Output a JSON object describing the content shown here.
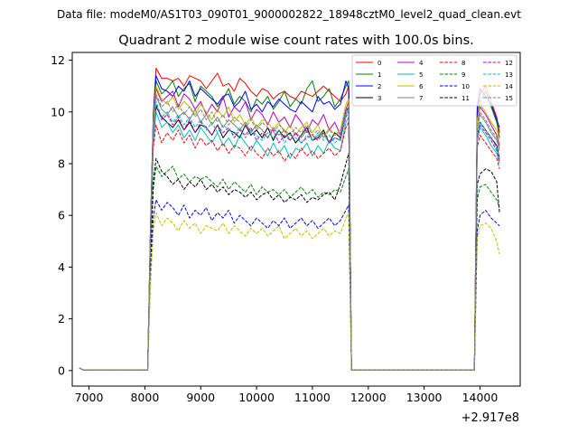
{
  "chart_data": {
    "type": "line",
    "suptitle": "Data file: modeM0/AS1T03_090T01_9000002822_18948cztM0_level2_quad_clean.evt",
    "title": "Quadrant 2 module wise count rates with 100.0s bins.",
    "xlabel": "",
    "ylabel": "",
    "x_offset_label": "+2.917e8",
    "xlim": [
      6700,
      14720
    ],
    "ylim": [
      -0.6,
      12.3
    ],
    "x_ticks": [
      7000,
      8000,
      9000,
      10000,
      11000,
      12000,
      13000,
      14000
    ],
    "y_ticks": [
      0,
      2,
      4,
      6,
      8,
      10,
      12
    ],
    "grid": false,
    "legend_position": "top-right",
    "x": [
      6830,
      6900,
      8050,
      8100,
      8150,
      8200,
      8300,
      8400,
      8500,
      8600,
      8700,
      8800,
      8900,
      9000,
      9100,
      9200,
      9300,
      9400,
      9500,
      9600,
      9700,
      9800,
      9900,
      10000,
      10100,
      10200,
      10300,
      10400,
      10500,
      10600,
      10700,
      10800,
      10900,
      11000,
      11100,
      11200,
      11300,
      11400,
      11500,
      11600,
      11650,
      11700,
      11800,
      11900,
      13800,
      13900,
      13950,
      14000,
      14100,
      14200,
      14300,
      14350
    ],
    "series": [
      {
        "name": "0",
        "color": "#ff0000",
        "dash": "solid",
        "values": [
          0.1,
          0.02,
          0.02,
          5.6,
          9.9,
          11.7,
          11.3,
          11.3,
          11.2,
          11.3,
          11.0,
          11.4,
          11.3,
          11.2,
          10.9,
          11.2,
          11.5,
          11.0,
          11.1,
          10.8,
          11.3,
          11.1,
          10.8,
          10.6,
          10.9,
          10.8,
          10.5,
          10.7,
          10.8,
          10.6,
          10.5,
          10.8,
          10.7,
          10.6,
          10.8,
          11.0,
          10.8,
          10.6,
          10.4,
          10.7,
          11.0,
          0.02,
          0.02,
          0.02,
          0.02,
          0.02,
          10.0,
          10.7,
          11.0,
          10.4,
          9.8,
          9.2
        ]
      },
      {
        "name": "1",
        "color": "#008000",
        "dash": "solid",
        "values": [
          0.1,
          0.02,
          0.02,
          5.4,
          9.5,
          11.2,
          10.7,
          10.9,
          11.2,
          10.6,
          10.9,
          11.1,
          10.4,
          11.0,
          10.8,
          10.6,
          10.2,
          10.5,
          10.9,
          10.3,
          10.6,
          10.4,
          10.0,
          10.5,
          10.3,
          10.6,
          10.1,
          10.4,
          10.8,
          10.2,
          10.5,
          10.3,
          10.9,
          11.2,
          10.4,
          10.6,
          10.9,
          10.2,
          10.5,
          11.0,
          11.2,
          0.02,
          0.02,
          0.02,
          0.02,
          0.02,
          9.8,
          10.4,
          10.8,
          10.2,
          9.6,
          9.0
        ]
      },
      {
        "name": "2",
        "color": "#0000ff",
        "dash": "solid",
        "values": [
          0.1,
          0.02,
          0.02,
          5.5,
          9.8,
          11.4,
          10.9,
          10.8,
          10.6,
          11.0,
          10.8,
          11.2,
          10.6,
          10.9,
          10.7,
          10.5,
          10.3,
          10.6,
          10.7,
          10.2,
          10.4,
          10.8,
          10.1,
          10.3,
          10.0,
          10.4,
          10.2,
          10.5,
          10.3,
          10.1,
          10.0,
          10.4,
          10.2,
          10.0,
          10.6,
          10.3,
          10.4,
          10.1,
          10.3,
          11.2,
          10.9,
          0.02,
          0.02,
          0.02,
          0.02,
          0.02,
          10.2,
          10.9,
          10.6,
          10.3,
          9.7,
          9.4
        ]
      },
      {
        "name": "3",
        "color": "#000000",
        "dash": "solid",
        "values": [
          0.1,
          0.02,
          0.02,
          5.0,
          8.9,
          10.2,
          9.8,
          9.6,
          9.4,
          9.7,
          9.3,
          9.6,
          9.2,
          9.5,
          9.4,
          9.1,
          9.5,
          9.0,
          9.3,
          9.2,
          9.0,
          9.5,
          9.1,
          9.3,
          9.0,
          9.4,
          8.9,
          9.3,
          9.0,
          9.2,
          8.8,
          9.1,
          9.4,
          8.9,
          9.0,
          9.3,
          8.8,
          9.2,
          9.0,
          10.0,
          10.2,
          0.02,
          0.02,
          0.02,
          0.02,
          0.02,
          9.0,
          9.6,
          9.3,
          9.0,
          8.7,
          8.2
        ]
      },
      {
        "name": "4",
        "color": "#bf00bf",
        "dash": "solid",
        "values": [
          0.1,
          0.02,
          0.02,
          5.3,
          9.5,
          10.9,
          10.4,
          10.6,
          10.8,
          10.2,
          10.7,
          10.5,
          10.1,
          10.4,
          9.9,
          10.3,
          10.0,
          10.6,
          9.8,
          10.2,
          10.0,
          10.4,
          9.7,
          10.1,
          9.9,
          9.5,
          10.0,
          9.6,
          9.8,
          9.4,
          9.9,
          9.6,
          9.2,
          9.7,
          9.5,
          9.9,
          9.3,
          9.6,
          9.1,
          10.1,
          10.4,
          0.02,
          0.02,
          0.02,
          0.02,
          0.02,
          9.6,
          10.2,
          9.9,
          9.5,
          9.1,
          8.7
        ]
      },
      {
        "name": "5",
        "color": "#00bfbf",
        "dash": "solid",
        "values": [
          0.1,
          0.02,
          0.02,
          4.9,
          8.8,
          10.0,
          9.4,
          9.6,
          9.2,
          9.5,
          9.0,
          9.3,
          8.9,
          9.4,
          9.1,
          8.8,
          9.2,
          8.7,
          9.0,
          8.6,
          9.1,
          8.8,
          8.5,
          8.9,
          8.6,
          8.3,
          8.8,
          8.4,
          8.7,
          8.2,
          8.6,
          8.5,
          8.8,
          8.3,
          8.7,
          8.4,
          8.9,
          8.6,
          8.5,
          9.6,
          9.8,
          0.02,
          0.02,
          0.02,
          0.02,
          0.02,
          8.9,
          9.4,
          9.1,
          8.7,
          8.4,
          8.0
        ]
      },
      {
        "name": "6",
        "color": "#bfbf00",
        "dash": "solid",
        "values": [
          0.1,
          0.02,
          0.02,
          5.3,
          9.6,
          11.0,
          10.5,
          10.3,
          10.6,
          10.1,
          10.4,
          10.2,
          9.9,
          10.3,
          10.0,
          9.7,
          10.1,
          9.8,
          10.2,
          9.6,
          9.9,
          9.5,
          9.8,
          9.4,
          9.7,
          9.6,
          9.3,
          9.6,
          9.2,
          9.5,
          9.1,
          9.4,
          9.6,
          9.2,
          9.5,
          9.0,
          9.4,
          9.1,
          9.3,
          10.3,
          10.5,
          0.02,
          0.02,
          0.02,
          0.02,
          0.02,
          9.7,
          10.3,
          10.0,
          9.6,
          9.3,
          8.9
        ]
      },
      {
        "name": "7",
        "color": "#808080",
        "dash": "solid",
        "values": [
          0.1,
          0.02,
          0.02,
          5.1,
          9.2,
          10.6,
          10.1,
          9.9,
          10.2,
          9.8,
          10.0,
          9.7,
          10.1,
          9.6,
          9.9,
          9.5,
          9.8,
          9.4,
          9.7,
          9.5,
          9.3,
          9.6,
          9.2,
          9.5,
          9.3,
          9.0,
          9.4,
          9.1,
          9.3,
          8.9,
          9.2,
          9.0,
          9.3,
          8.9,
          9.1,
          9.2,
          8.8,
          9.0,
          8.9,
          9.9,
          10.1,
          0.02,
          0.02,
          0.02,
          0.02,
          0.02,
          9.3,
          9.9,
          9.6,
          9.2,
          8.9,
          8.5
        ]
      },
      {
        "name": "8",
        "color": "#ff0000",
        "dash": "dashed",
        "values": [
          0.1,
          0.02,
          0.02,
          4.8,
          8.6,
          9.5,
          8.8,
          9.2,
          8.9,
          9.3,
          8.8,
          9.1,
          8.6,
          9.0,
          8.7,
          8.9,
          8.5,
          8.8,
          8.4,
          8.7,
          8.6,
          8.3,
          8.7,
          8.4,
          8.2,
          8.6,
          8.3,
          8.5,
          8.1,
          8.4,
          8.2,
          8.6,
          8.3,
          8.5,
          8.2,
          8.4,
          8.6,
          8.3,
          8.5,
          9.4,
          9.6,
          0.02,
          0.02,
          0.02,
          0.02,
          0.02,
          8.6,
          9.1,
          8.8,
          8.5,
          8.2,
          7.8
        ]
      },
      {
        "name": "9",
        "color": "#008000",
        "dash": "dashed",
        "values": [
          0.1,
          0.02,
          0.02,
          4.0,
          7.0,
          7.9,
          7.5,
          7.7,
          7.9,
          7.4,
          7.6,
          7.3,
          7.5,
          7.4,
          7.5,
          7.3,
          7.1,
          7.4,
          7.0,
          7.3,
          7.1,
          6.9,
          7.2,
          6.8,
          7.1,
          6.9,
          7.0,
          6.8,
          7.0,
          6.7,
          6.9,
          7.1,
          6.8,
          7.0,
          6.7,
          6.9,
          6.8,
          7.0,
          6.9,
          7.5,
          7.8,
          0.02,
          0.02,
          0.02,
          0.02,
          0.02,
          6.6,
          7.1,
          7.2,
          6.9,
          6.6,
          6.3
        ]
      },
      {
        "name": "10",
        "color": "#0000ff",
        "dash": "dashed",
        "values": [
          0.1,
          0.02,
          0.02,
          3.5,
          5.9,
          6.6,
          6.2,
          6.5,
          6.3,
          6.0,
          6.4,
          5.9,
          6.2,
          6.0,
          6.3,
          5.8,
          6.1,
          5.9,
          6.2,
          5.7,
          6.0,
          5.8,
          5.6,
          5.9,
          5.7,
          5.5,
          5.8,
          5.6,
          5.9,
          5.5,
          5.7,
          5.9,
          5.6,
          5.8,
          5.5,
          5.7,
          5.9,
          5.6,
          5.8,
          6.2,
          6.4,
          0.02,
          0.02,
          0.02,
          0.02,
          0.02,
          5.4,
          6.0,
          6.2,
          5.9,
          5.7,
          5.6
        ]
      },
      {
        "name": "11",
        "color": "#000000",
        "dash": "dashed",
        "values": [
          0.1,
          0.02,
          0.02,
          4.2,
          7.3,
          8.2,
          7.7,
          7.5,
          7.2,
          7.4,
          7.0,
          7.3,
          7.1,
          7.4,
          7.0,
          7.2,
          6.9,
          7.1,
          6.8,
          7.0,
          6.9,
          6.7,
          6.9,
          6.6,
          6.8,
          6.9,
          6.6,
          6.8,
          6.5,
          6.7,
          6.6,
          6.8,
          6.5,
          6.7,
          6.6,
          6.8,
          6.9,
          6.6,
          7.2,
          8.0,
          8.4,
          0.02,
          0.02,
          0.02,
          0.02,
          0.02,
          7.2,
          7.6,
          7.8,
          7.7,
          7.3,
          6.1
        ]
      },
      {
        "name": "12",
        "color": "#bf00bf",
        "dash": "dashed",
        "values": [
          0.1,
          0.02,
          0.02,
          5.0,
          9.0,
          10.3,
          9.7,
          9.9,
          9.5,
          9.8,
          9.3,
          9.7,
          9.2,
          9.6,
          9.4,
          9.1,
          9.5,
          9.2,
          9.4,
          9.0,
          9.3,
          9.1,
          9.4,
          8.9,
          9.2,
          9.0,
          9.3,
          8.8,
          9.1,
          8.9,
          9.2,
          8.8,
          9.0,
          9.1,
          8.9,
          9.2,
          8.8,
          9.0,
          8.9,
          9.8,
          10.0,
          0.02,
          0.02,
          0.02,
          0.02,
          0.02,
          8.9,
          9.5,
          9.2,
          8.9,
          8.5,
          8.1
        ]
      },
      {
        "name": "13",
        "color": "#00bfbf",
        "dash": "dashed",
        "values": [
          0.1,
          0.02,
          0.02,
          5.1,
          9.1,
          10.4,
          9.8,
          10.0,
          9.6,
          9.9,
          9.5,
          9.8,
          9.4,
          9.7,
          9.3,
          9.6,
          9.2,
          9.5,
          9.3,
          9.1,
          9.4,
          9.0,
          9.3,
          9.1,
          8.9,
          9.2,
          9.0,
          9.3,
          8.8,
          9.1,
          9.0,
          8.8,
          9.1,
          8.9,
          9.2,
          8.9,
          9.1,
          8.8,
          9.0,
          9.9,
          10.1,
          0.02,
          0.02,
          0.02,
          0.02,
          0.02,
          9.0,
          9.6,
          9.3,
          9.0,
          8.6,
          8.2
        ]
      },
      {
        "name": "14",
        "color": "#bfbf00",
        "dash": "dashed",
        "values": [
          0.1,
          0.02,
          0.02,
          3.3,
          5.4,
          6.1,
          5.6,
          5.9,
          5.7,
          5.4,
          5.8,
          5.5,
          5.7,
          5.3,
          5.6,
          5.5,
          5.4,
          5.7,
          5.3,
          5.6,
          5.4,
          5.2,
          5.5,
          5.3,
          5.5,
          5.2,
          5.4,
          5.6,
          5.1,
          5.3,
          5.5,
          5.2,
          5.4,
          5.1,
          5.3,
          5.5,
          5.2,
          5.4,
          5.3,
          5.9,
          6.1,
          0.02,
          0.02,
          0.02,
          0.02,
          0.02,
          5.1,
          5.6,
          5.7,
          5.5,
          5.0,
          4.5
        ]
      },
      {
        "name": "15",
        "color": "#808080",
        "dash": "dashed",
        "values": [
          0.1,
          0.02,
          0.02,
          5.2,
          9.4,
          10.7,
          10.2,
          10.4,
          10.0,
          10.3,
          9.9,
          10.2,
          9.8,
          10.1,
          9.7,
          10.0,
          9.6,
          9.9,
          9.5,
          9.8,
          9.6,
          9.4,
          9.7,
          9.3,
          9.6,
          9.4,
          9.2,
          9.5,
          9.3,
          9.1,
          9.4,
          9.2,
          9.5,
          9.1,
          9.3,
          9.0,
          9.3,
          9.1,
          9.2,
          10.0,
          10.2,
          0.02,
          0.02,
          0.02,
          0.02,
          0.02,
          9.4,
          10.0,
          9.7,
          9.3,
          9.0,
          8.6
        ]
      }
    ]
  }
}
